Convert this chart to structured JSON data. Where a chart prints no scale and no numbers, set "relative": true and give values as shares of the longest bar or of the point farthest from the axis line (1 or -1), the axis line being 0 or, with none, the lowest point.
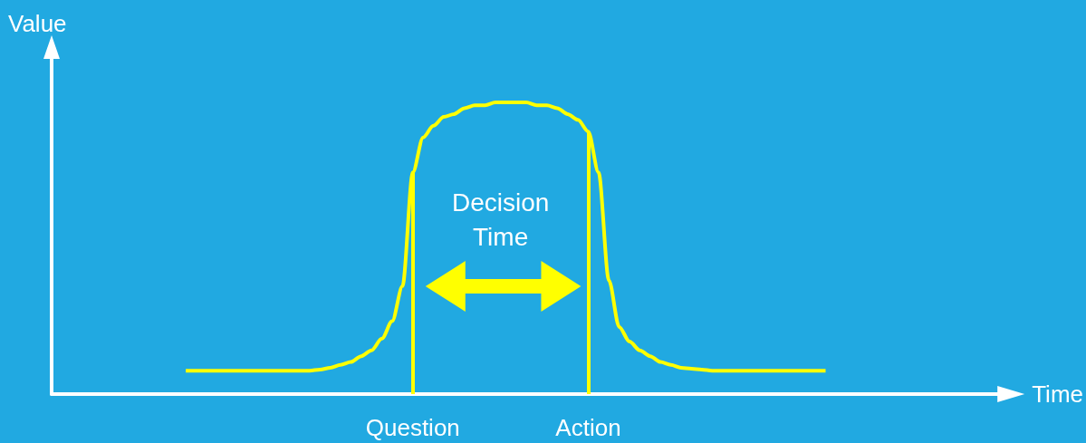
{
  "chart_data": {
    "type": "line",
    "relative": true,
    "xlabel": "Time",
    "ylabel": "Value",
    "categories": [
      null,
      null,
      null,
      null,
      null,
      null,
      null,
      null,
      null,
      null,
      null,
      null,
      null,
      null,
      null,
      null,
      null,
      null,
      null,
      null,
      null,
      null,
      null,
      null,
      null,
      null,
      null,
      null,
      null,
      null,
      null,
      null,
      null,
      null,
      null,
      "Question",
      null,
      null,
      null,
      null,
      null,
      null,
      null,
      null,
      null,
      null,
      null,
      null,
      null,
      null,
      null,
      null,
      "Action",
      null,
      null,
      null,
      null,
      null,
      null,
      null,
      null,
      null,
      null,
      null,
      null,
      null,
      null,
      null,
      null,
      null,
      null,
      null,
      null,
      null,
      null,
      null,
      null,
      null,
      null,
      null,
      null,
      null,
      null,
      null,
      null,
      null,
      null,
      null,
      null,
      null,
      null,
      null,
      null
    ],
    "series": [
      {
        "color": "#ffff00",
        "values": [
          null,
          null,
          null,
          null,
          null,
          null,
          null,
          null,
          null,
          null,
          null,
          null,
          null,
          0.08,
          0.08,
          0.08,
          0.08,
          0.08,
          0.08,
          0.08,
          0.08,
          0.08,
          0.08,
          0.08,
          0.08,
          0.08,
          0.084,
          0.09,
          0.1,
          0.11,
          0.13,
          0.15,
          0.19,
          0.25,
          0.37,
          0.76,
          0.88,
          0.92,
          0.95,
          0.96,
          0.98,
          0.99,
          0.99,
          1,
          1,
          1,
          1,
          0.99,
          0.99,
          0.98,
          0.96,
          0.94,
          0.9,
          0.76,
          0.39,
          0.23,
          0.18,
          0.15,
          0.13,
          0.11,
          0.1,
          0.09,
          0.087,
          0.084,
          0.08,
          0.08,
          0.08,
          0.08,
          0.08,
          0.08,
          0.08,
          0.08,
          0.08,
          0.08,
          0.08,
          0.08,
          null,
          null,
          null,
          null,
          null,
          null,
          null,
          null,
          null,
          null,
          null,
          null,
          null,
          null,
          null,
          null,
          null
        ]
      }
    ],
    "ref_lines": [
      {
        "axis": "x",
        "value": "Question",
        "color": "#ffff00"
      },
      {
        "axis": "x",
        "value": "Action",
        "color": "#ffff00"
      }
    ],
    "annotations": [
      "Decision Time"
    ],
    "marker": "none",
    "grid": false
  }
}
